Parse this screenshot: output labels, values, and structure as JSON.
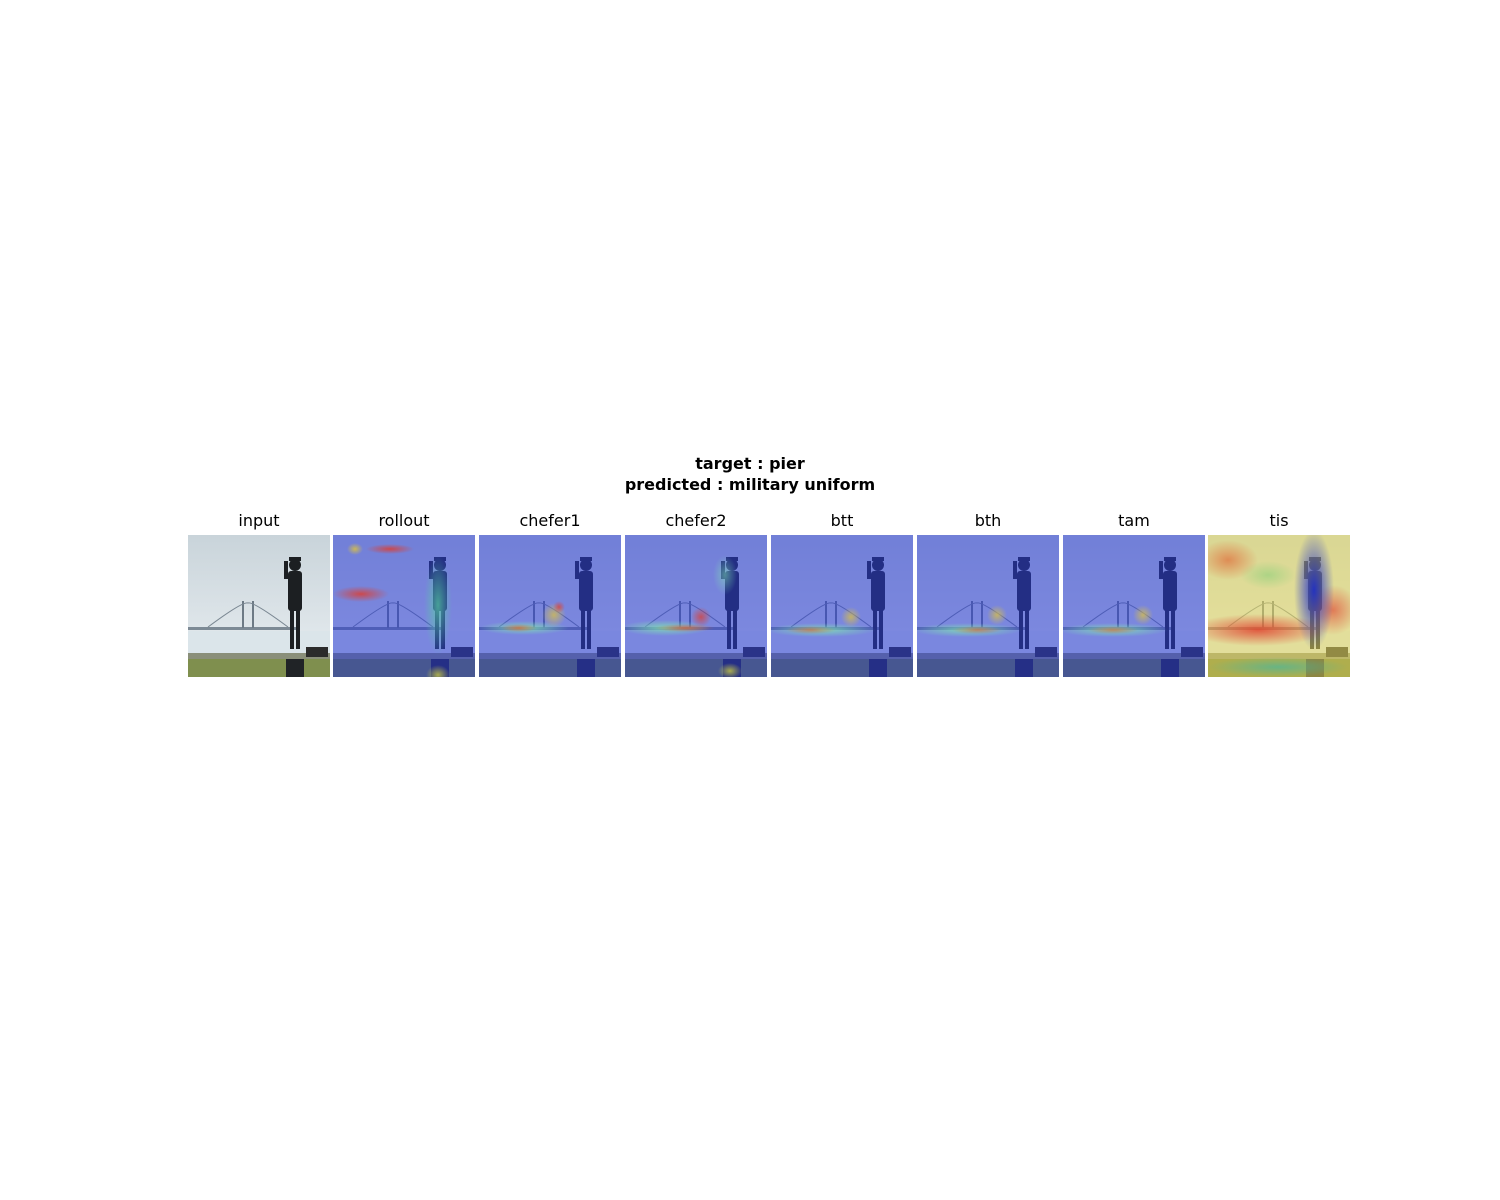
{
  "suptitle": {
    "line1": "target : pier",
    "line2": "predicted : military uniform"
  },
  "panels": [
    {
      "title": "input",
      "overlay": "none"
    },
    {
      "title": "rollout",
      "overlay": "rollout"
    },
    {
      "title": "chefer1",
      "overlay": "chefer1"
    },
    {
      "title": "chefer2",
      "overlay": "chefer2"
    },
    {
      "title": "btt",
      "overlay": "btt"
    },
    {
      "title": "bth",
      "overlay": "bth"
    },
    {
      "title": "tam",
      "overlay": "tam"
    },
    {
      "title": "tis",
      "overlay": "tis"
    }
  ]
}
